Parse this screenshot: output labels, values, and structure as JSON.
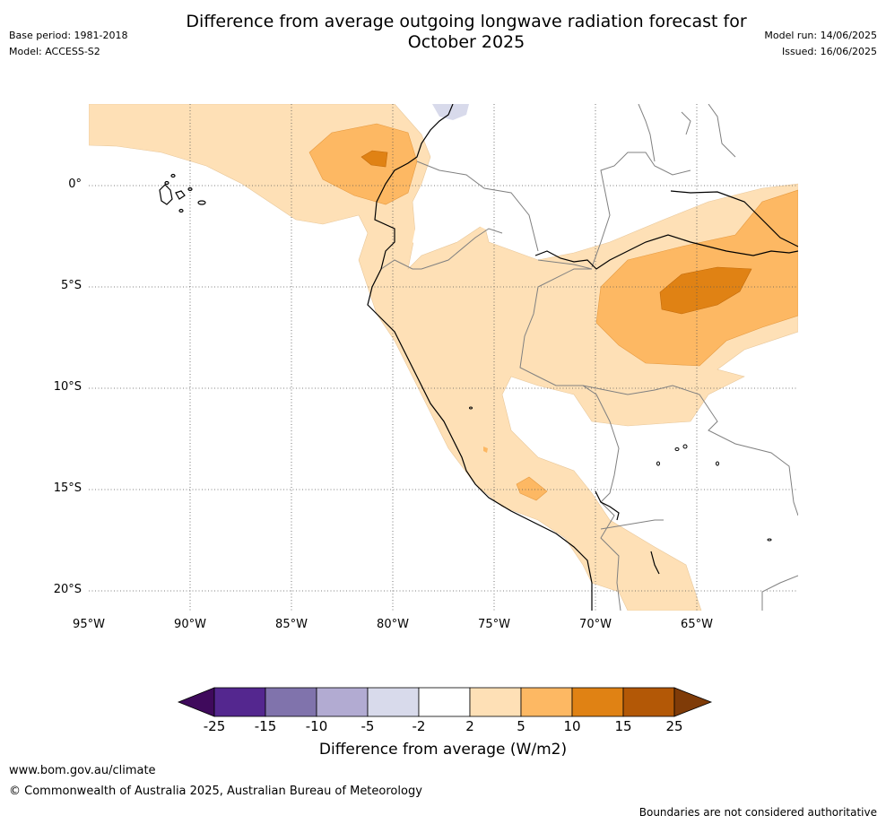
{
  "header": {
    "title_line1": "Difference from average outgoing longwave radiation forecast for",
    "title_line2": "October 2025",
    "base_period": "Base period: 1981-2018",
    "model": "Model: ACCESS-S2",
    "model_run": "Model run: 14/06/2025",
    "issued": "Issued: 16/06/2025"
  },
  "map": {
    "latitude_labels": [
      "0°",
      "5°S",
      "10°S",
      "15°S",
      "20°S"
    ],
    "latitude_values": [
      0,
      -5,
      -10,
      -15,
      -20
    ],
    "longitude_labels": [
      "95°W",
      "90°W",
      "85°W",
      "80°W",
      "75°W",
      "70°W",
      "65°W"
    ],
    "longitude_values": [
      -95,
      -90,
      -85,
      -80,
      -75,
      -70,
      -65
    ],
    "extent": {
      "lon_min": -95,
      "lon_max": -60,
      "lat_min": -21,
      "lat_max": 4
    },
    "gridlines": true,
    "coastline_color": "#000000",
    "border_color": "#808080"
  },
  "colorbar": {
    "title": "Difference from average (W/m2)",
    "tick_labels": [
      "-25",
      "-15",
      "-10",
      "-5",
      "-2",
      "2",
      "5",
      "10",
      "15",
      "25"
    ],
    "colors": [
      "#3f0a5c",
      "#54278f",
      "#8073ac",
      "#b2abd2",
      "#d8daeb",
      "#ffffff",
      "#fee0b6",
      "#fdb863",
      "#e08214",
      "#b35806",
      "#7f3b08"
    ]
  },
  "footer": {
    "website": "www.bom.gov.au/climate",
    "copyright": "© Commonwealth of Australia 2025, Australian Bureau of Meteorology",
    "disclaimer": "Boundaries are not considered authoritative"
  }
}
